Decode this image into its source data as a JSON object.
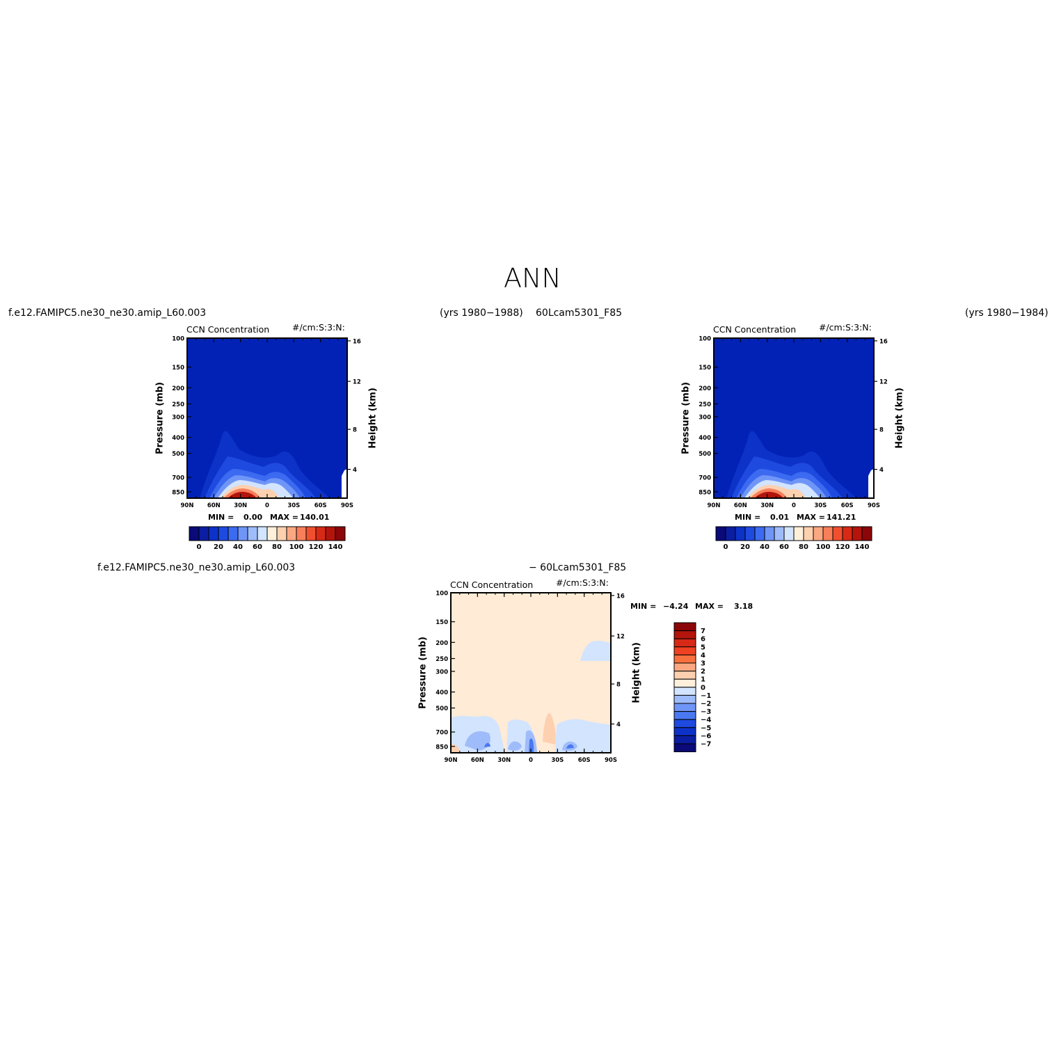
{
  "page": {
    "title": "ANN",
    "header_left_case": "f.e12.FAMIPC5.ne30_ne30.amip_L60.003",
    "header_left_years": "(yrs 1980−1988)",
    "header_right_case": "60Lcam5301_F85",
    "header_right_years": "(yrs 1980−1984)",
    "diff_left_case": "f.e12.FAMIPC5.ne30_ne30.amip_L60.003",
    "diff_right_case": "− 60Lcam5301_F85"
  },
  "chart_data": [
    {
      "id": "panel-1",
      "type": "heatmap",
      "title": "CCN Concentration",
      "units": "#/cm:S:3:N:",
      "xlabel": "",
      "ylabel": "Pressure (mb)",
      "ylabel_right": "Height (km)",
      "x_ticks": [
        "90N",
        "60N",
        "30N",
        "0",
        "30S",
        "60S",
        "90S"
      ],
      "y_ticks": [
        "100",
        "150",
        "200",
        "250",
        "300",
        "400",
        "500",
        "700",
        "850"
      ],
      "y_right_ticks": [
        "16",
        "12",
        "8",
        "4"
      ],
      "min_label": "MIN =",
      "min_value": "0.00",
      "max_label": "MAX =",
      "max_value": "140.01",
      "colorbar_labels": [
        "0",
        "20",
        "40",
        "60",
        "80",
        "100",
        "120",
        "140"
      ],
      "colorbar_colors": [
        "#0a0a78",
        "#0b1ea2",
        "#0d32c8",
        "#1e4ae0",
        "#3c6af0",
        "#6f95f7",
        "#9fbcfa",
        "#d2e4fe",
        "#fff0dc",
        "#fdd0b0",
        "#fba882",
        "#f87f5a",
        "#f05030",
        "#d72a16",
        "#b3150c",
        "#8a0608"
      ],
      "background_color": "#0222b6"
    },
    {
      "id": "panel-2",
      "type": "heatmap",
      "title": "CCN Concentration",
      "units": "#/cm:S:3:N:",
      "xlabel": "",
      "ylabel": "Pressure (mb)",
      "ylabel_right": "Height (km)",
      "x_ticks": [
        "90N",
        "60N",
        "30N",
        "0",
        "30S",
        "60S",
        "90S"
      ],
      "y_ticks": [
        "100",
        "150",
        "200",
        "250",
        "300",
        "400",
        "500",
        "700",
        "850"
      ],
      "y_right_ticks": [
        "16",
        "12",
        "8",
        "4"
      ],
      "min_label": "MIN =",
      "min_value": "0.01",
      "max_label": "MAX =",
      "max_value": "141.21",
      "colorbar_labels": [
        "0",
        "20",
        "40",
        "60",
        "80",
        "100",
        "120",
        "140"
      ],
      "colorbar_colors": [
        "#0a0a78",
        "#0b1ea2",
        "#0d32c8",
        "#1e4ae0",
        "#3c6af0",
        "#6f95f7",
        "#9fbcfa",
        "#d2e4fe",
        "#fff0dc",
        "#fdd0b0",
        "#fba882",
        "#f87f5a",
        "#f05030",
        "#d72a16",
        "#b3150c",
        "#8a0608"
      ],
      "background_color": "#0222b6"
    },
    {
      "id": "panel-diff",
      "type": "heatmap",
      "title": "CCN Concentration",
      "units": "#/cm:S:3:N:",
      "xlabel": "",
      "ylabel": "Pressure (mb)",
      "ylabel_right": "Height (km)",
      "x_ticks": [
        "90N",
        "60N",
        "30N",
        "0",
        "30S",
        "60S",
        "90S"
      ],
      "y_ticks": [
        "100",
        "150",
        "200",
        "250",
        "300",
        "400",
        "500",
        "700",
        "850"
      ],
      "y_right_ticks": [
        "16",
        "12",
        "8",
        "4"
      ],
      "min_label": "MIN =",
      "min_value": "−4.24",
      "max_label": "MAX =",
      "max_value": "3.18",
      "colorbar_labels": [
        "7",
        "6",
        "5",
        "4",
        "3",
        "2",
        "1",
        "0",
        "−1",
        "−2",
        "−3",
        "−4",
        "−5",
        "−6",
        "−7"
      ],
      "colorbar_colors": [
        "#8a0608",
        "#b3150c",
        "#d72a16",
        "#f04222",
        "#f8703e",
        "#fba882",
        "#fdd0b0",
        "#fff0dc",
        "#d2e4fe",
        "#9fbcfa",
        "#6f95f7",
        "#4a78f0",
        "#1e4ae0",
        "#0d32c8",
        "#0b1ea2",
        "#0a0a78"
      ],
      "background_color": "#ffebd6"
    }
  ]
}
